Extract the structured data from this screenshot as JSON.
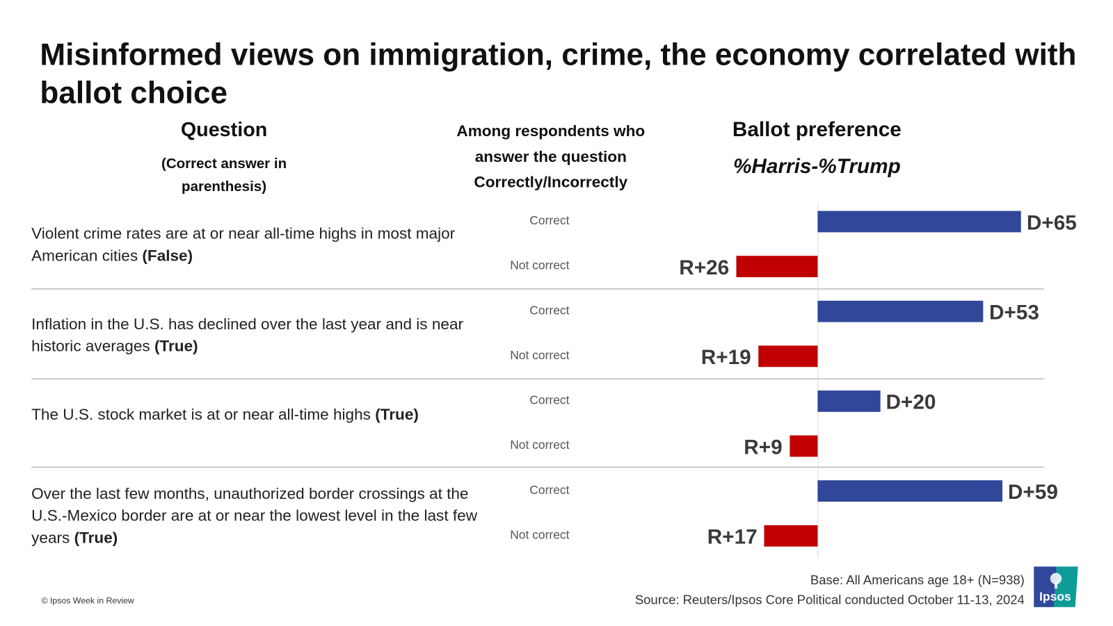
{
  "title": "Misinformed views on immigration, crime, the economy correlated with ballot choice",
  "headers": {
    "question": "Question",
    "question_sub": "(Correct answer in parenthesis)",
    "among": "Among respondents who answer the question Correctly/Incorrectly",
    "ballot": "Ballot preference",
    "ballot_sub": "%Harris-%Trump"
  },
  "questions": [
    {
      "text": "Violent crime rates are at or near all-time highs in most major American cities ",
      "answer": "(False)"
    },
    {
      "text": "Inflation in the U.S. has declined over the last year and is near historic averages ",
      "answer": "(True)"
    },
    {
      "text": "The U.S. stock market is at or near all-time highs ",
      "answer": "(True)"
    },
    {
      "text": "Over the last few months, unauthorized border crossings at the U.S.-Mexico border are at or near the lowest level in the last few years ",
      "answer": "(True)"
    }
  ],
  "colors": {
    "harris": "#30479A",
    "trump": "#C00000"
  },
  "chart_data": {
    "type": "bar",
    "orientation": "horizontal",
    "series_labels": [
      "Correct",
      "Not correct"
    ],
    "categories": [
      "Violent crime rates are at or near all-time highs in most major American cities (False)",
      "Inflation in the U.S. has declined over the last year and is near historic averages (True)",
      "The U.S. stock market is at or near all-time highs (True)",
      "Over the last few months, unauthorized border crossings at the U.S.-Mexico border are at or near the lowest level in the last few years (True)"
    ],
    "series": [
      {
        "name": "Correct",
        "values": [
          65,
          53,
          20,
          59
        ],
        "labels": [
          "D+65",
          "D+53",
          "D+20",
          "D+59"
        ]
      },
      {
        "name": "Not correct",
        "values": [
          -26,
          -19,
          -9,
          -17
        ],
        "labels": [
          "R+26",
          "R+19",
          "R+9",
          "R+17"
        ]
      }
    ],
    "axis": "%Harris-%Trump",
    "grid": false
  },
  "footer": {
    "base": "Base: All Americans age 18+ (N=938)",
    "source": "Source: Reuters/Ipsos Core Political conducted October 11-13, 2024",
    "copyright": "© Ipsos Week in Review",
    "logo_text": "Ipsos"
  }
}
